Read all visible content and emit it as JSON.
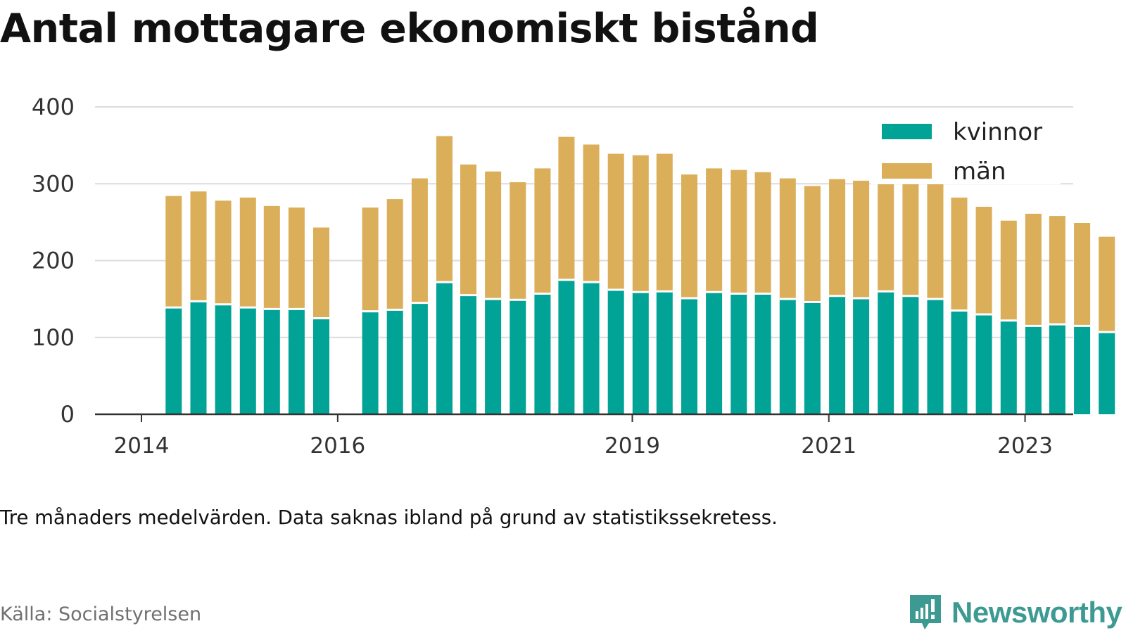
{
  "chart_data": {
    "type": "bar",
    "stacked": true,
    "title": "Antal mottagare ekonomiskt bistånd",
    "note": "Tre månaders medelvärden. Data saknas ibland på grund av statistikssekretess.",
    "source": "Källa: Socialstyrelsen",
    "xlabel": "",
    "ylabel": "",
    "ylim": [
      0,
      400
    ],
    "yticks": [
      0,
      100,
      200,
      300,
      400
    ],
    "xticks": [
      "2014",
      "2016",
      "2019",
      "2021",
      "2023"
    ],
    "grid": true,
    "legend_position": "top-right",
    "categories": [
      "2014-05",
      "2014-08",
      "2014-11",
      "2015-02",
      "2015-05",
      "2015-08",
      "2015-11",
      "2016-05",
      "2016-08",
      "2016-11",
      "2017-02",
      "2017-05",
      "2017-08",
      "2017-11",
      "2018-02",
      "2018-05",
      "2018-08",
      "2018-11",
      "2019-02",
      "2019-05",
      "2019-08",
      "2019-11",
      "2020-02",
      "2020-05",
      "2020-08",
      "2020-11",
      "2021-02",
      "2021-05",
      "2021-08",
      "2021-11",
      "2022-02",
      "2022-05",
      "2022-08",
      "2022-11",
      "2023-02",
      "2023-05",
      "2023-08",
      "2023-11"
    ],
    "series": [
      {
        "name": "kvinnor",
        "color": "#00a396",
        "values": [
          139,
          147,
          143,
          139,
          137,
          137,
          125,
          134,
          136,
          145,
          172,
          155,
          150,
          149,
          157,
          175,
          172,
          162,
          159,
          160,
          151,
          159,
          157,
          157,
          150,
          146,
          154,
          151,
          160,
          154,
          150,
          135,
          130,
          122,
          115,
          117,
          115,
          107
        ]
      },
      {
        "name": "män",
        "color": "#dbae5a",
        "values": [
          145,
          143,
          135,
          143,
          134,
          132,
          118,
          135,
          144,
          162,
          190,
          170,
          166,
          153,
          163,
          186,
          179,
          177,
          178,
          179,
          161,
          161,
          161,
          158,
          157,
          151,
          152,
          153,
          146,
          146,
          150,
          147,
          140,
          130,
          146,
          141,
          134,
          124
        ]
      }
    ]
  },
  "brand": {
    "name": "Newsworthy",
    "icon": "bar-chart-speech-icon",
    "color": "#3d9a92"
  }
}
